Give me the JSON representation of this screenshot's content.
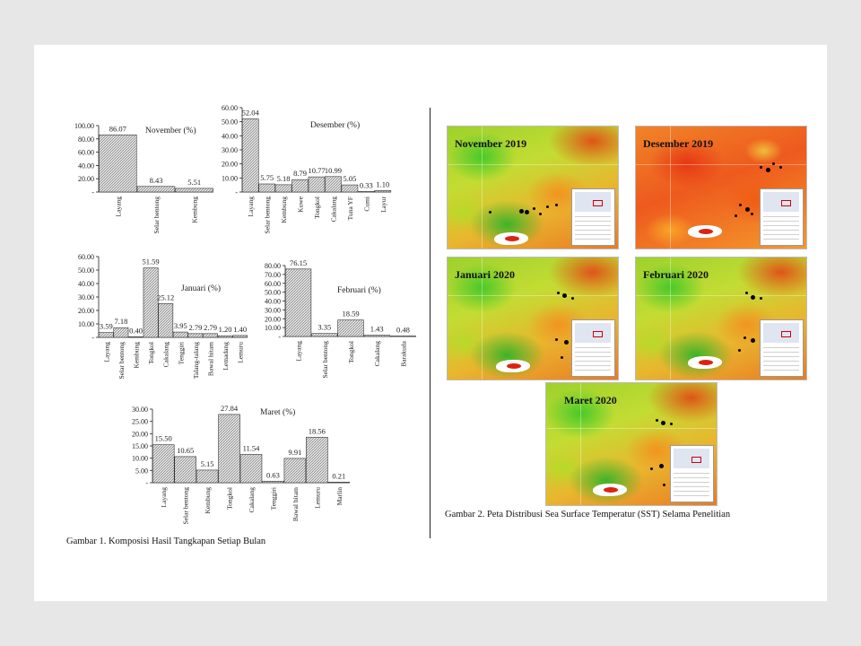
{
  "figure1": {
    "caption": "Gambar 1. Komposisi Hasil Tangkapan Setiap Bulan"
  },
  "figure2": {
    "caption": "Gambar 2. Peta Distribusi Sea Surface Temperatur (SST) Selama Penelitian",
    "maps": [
      {
        "title": "November 2019"
      },
      {
        "title": "Desember 2019"
      },
      {
        "title": "Januari 2020"
      },
      {
        "title": "Februari 2020"
      },
      {
        "title": "Maret 2020"
      }
    ]
  },
  "colors": {
    "bar_fill": "#d7d7d7",
    "bar_stroke": "#333333",
    "axis": "#222222"
  },
  "chart_data": [
    {
      "type": "bar",
      "title": "November (%)",
      "categories": [
        "Layang",
        "Selar bentong",
        "Kembung"
      ],
      "values": [
        86.07,
        8.43,
        5.51
      ],
      "value_labels": [
        "86.07",
        "8.43",
        "5.51"
      ],
      "ylim": [
        0,
        100
      ],
      "yticks": [
        0,
        20,
        40,
        60,
        80,
        100
      ],
      "ytick_labels": [
        "-",
        "20.00",
        "40.00",
        "60.00",
        "80.00",
        "100.00"
      ]
    },
    {
      "type": "bar",
      "title": "Desember (%)",
      "categories": [
        "Layang",
        "Selar bentong",
        "Kembung",
        "Kuwe",
        "Tongkol",
        "Cakalang",
        "Tuna YF",
        "Cumi",
        "Layur"
      ],
      "values": [
        52.04,
        5.75,
        5.18,
        8.79,
        10.77,
        10.99,
        5.05,
        0.33,
        1.1
      ],
      "value_labels": [
        "52.04",
        "5.75",
        "5.18",
        "8.79",
        "10.77",
        "10.99",
        "5.05",
        "0.33",
        "1.10"
      ],
      "ylim": [
        0,
        60
      ],
      "yticks": [
        0,
        10,
        20,
        30,
        40,
        50,
        60
      ],
      "ytick_labels": [
        "-",
        "10.00",
        "20.00",
        "30.00",
        "40.00",
        "50.00",
        "60.00"
      ]
    },
    {
      "type": "bar",
      "title": "Januari (%)",
      "categories": [
        "Layang",
        "Selar bentong",
        "Kembung",
        "Tongkol",
        "Cakalang",
        "Tenggiri",
        "Talang-talang",
        "Bawal hitam",
        "Lemadang",
        "Lemuru"
      ],
      "values": [
        3.59,
        7.18,
        0.4,
        51.59,
        25.12,
        3.95,
        2.79,
        2.79,
        1.2,
        1.4
      ],
      "value_labels": [
        "3.59",
        "7.18",
        "0.40",
        "51.59",
        "25.12",
        "3.95",
        "2.79",
        "2.79",
        "1.20",
        "1.40"
      ],
      "ylim": [
        0,
        60
      ],
      "yticks": [
        0,
        10,
        20,
        30,
        40,
        50,
        60
      ],
      "ytick_labels": [
        "-",
        "10.00",
        "20.00",
        "30.00",
        "40.00",
        "50.00",
        "60.00"
      ]
    },
    {
      "type": "bar",
      "title": "Februari (%)",
      "categories": [
        "Layang",
        "Selar bentong",
        "Tongkol",
        "Cakalang",
        "Barakuda"
      ],
      "values": [
        76.15,
        3.35,
        18.59,
        1.43,
        0.48
      ],
      "value_labels": [
        "76.15",
        "3.35",
        "18.59",
        "1.43",
        "0.48"
      ],
      "ylim": [
        0,
        80
      ],
      "yticks": [
        0,
        10,
        20,
        30,
        40,
        50,
        60,
        70,
        80
      ],
      "ytick_labels": [
        "-",
        "10.00",
        "20.00",
        "30.00",
        "40.00",
        "50.00",
        "60.00",
        "70.00",
        "80.00"
      ]
    },
    {
      "type": "bar",
      "title": "Maret (%)",
      "categories": [
        "Layang",
        "Selar bentong",
        "Kembung",
        "Tongkol",
        "Cakalang",
        "Tenggiri",
        "Bawal hitam",
        "Lemuru",
        "Marlin"
      ],
      "values": [
        15.5,
        10.65,
        5.15,
        27.84,
        11.54,
        0.63,
        9.91,
        18.56,
        0.21
      ],
      "value_labels": [
        "15.50",
        "10.65",
        "5.15",
        "27.84",
        "11.54",
        "0.63",
        "9.91",
        "18.56",
        "0.21"
      ],
      "ylim": [
        0,
        30
      ],
      "yticks": [
        0,
        5,
        10,
        15,
        20,
        25,
        30
      ],
      "ytick_labels": [
        "-",
        "5.00",
        "10.00",
        "15.00",
        "20.00",
        "25.00",
        "30.00"
      ]
    }
  ]
}
